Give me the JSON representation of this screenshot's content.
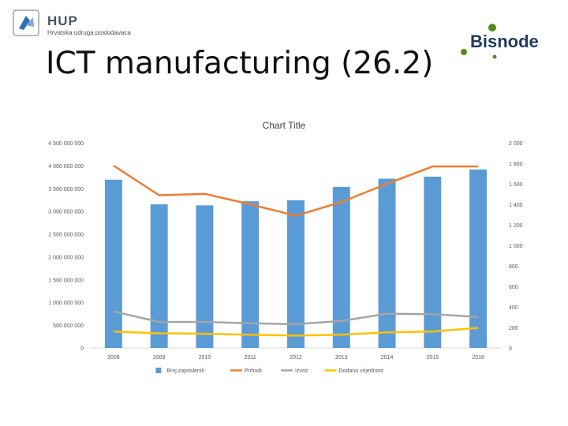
{
  "header": {
    "hup_name": "HUP",
    "hup_subtitle": "Hrvatska udruga poslodavaca",
    "bisnode_name": "Bisnode",
    "page_title": "ICT manufacturing (26.2)"
  },
  "colors": {
    "bar": "#5b9bd5",
    "prihodi": "#ed7d31",
    "izvoz": "#a5a5a5",
    "dodana": "#ffc000",
    "grid": "#d9d9d9"
  },
  "chart_data": {
    "type": "bar",
    "title": "Chart Title",
    "categories": [
      "2008",
      "2009",
      "2010",
      "2011",
      "2012",
      "2013",
      "2014",
      "2015",
      "2016"
    ],
    "left_axis": {
      "min": 0,
      "max": 4500000000,
      "ticks": [
        "0",
        "500 000 000",
        "1 000 000 000",
        "1 500 000 000",
        "2 000 000 000",
        "2 500 000 000",
        "3 000 000 000",
        "3 500 000 000",
        "4 000 000 000",
        "4 500 000 000"
      ]
    },
    "right_axis": {
      "min": 0,
      "max": 2000,
      "ticks": [
        "0",
        "200",
        "400",
        "600",
        "800",
        "1 000",
        "1 200",
        "1 400",
        "1 600",
        "1 800",
        "2 000"
      ]
    },
    "series": [
      {
        "name": "Broj zaposlenih",
        "type": "bar",
        "axis": "right",
        "values": [
          1640,
          1400,
          1390,
          1430,
          1440,
          1570,
          1650,
          1670,
          1740
        ]
      },
      {
        "name": "Prihodi",
        "type": "line",
        "axis": "left",
        "values": [
          4000000000,
          3350000000,
          3380000000,
          3150000000,
          2900000000,
          3200000000,
          3600000000,
          3980000000,
          3980000000
        ]
      },
      {
        "name": "Izvoz",
        "type": "line",
        "axis": "left",
        "values": [
          800000000,
          570000000,
          570000000,
          540000000,
          520000000,
          590000000,
          750000000,
          740000000,
          680000000
        ]
      },
      {
        "name": "Dodana vrijednost",
        "type": "line",
        "axis": "left",
        "values": [
          360000000,
          320000000,
          310000000,
          290000000,
          270000000,
          290000000,
          340000000,
          360000000,
          440000000
        ]
      }
    ],
    "legend_position": "bottom",
    "grid": false
  }
}
